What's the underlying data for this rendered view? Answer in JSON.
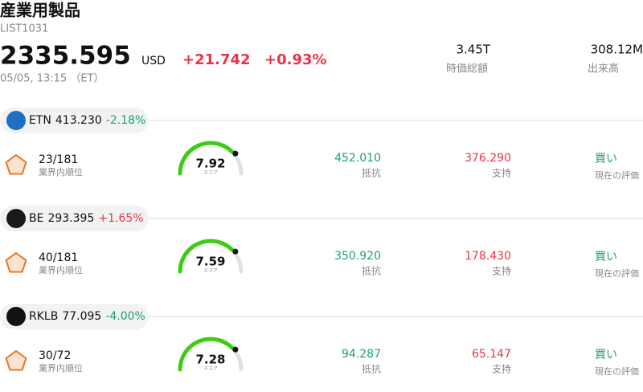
{
  "header": {
    "title": "産業用製品",
    "code": "LIST1031",
    "price": "2335.595",
    "currency": "USD",
    "change": "+21.742",
    "change_pct": "+0.93%",
    "datetime": "05/05, 13:15 （ET）",
    "market_cap": "3.45T",
    "market_cap_label": "時価総額",
    "volume": "308.12M",
    "volume_label": "出来高"
  },
  "stocks": [
    {
      "ticker": "ETN",
      "price": "413.230",
      "change_pct": "-2.18%",
      "rank": "23/181",
      "rank_label": "業界内順位",
      "score": "7.92",
      "score_label": "スコア",
      "resistance": "452.010",
      "resistance_label": "抵抗",
      "support": "376.290",
      "support_label": "支持",
      "rating": "買い",
      "rating_label": "現在の評価"
    },
    {
      "ticker": "BE",
      "price": "293.395",
      "change_pct": "+1.65%",
      "rank": "40/181",
      "rank_label": "業界内順位",
      "score": "7.59",
      "score_label": "スコア",
      "resistance": "350.920",
      "resistance_label": "抵抗",
      "support": "178.430",
      "support_label": "支持",
      "rating": "買い",
      "rating_label": "現在の評価"
    },
    {
      "ticker": "RKLB",
      "price": "77.095",
      "change_pct": "-4.00%",
      "rank": "30/72",
      "rank_label": "業界内順位",
      "score": "7.28",
      "score_label": "スコア",
      "resistance": "94.287",
      "resistance_label": "抵抗",
      "support": "65.147",
      "support_label": "支持",
      "rating": "買い",
      "rating_label": "現在の評価"
    }
  ]
}
